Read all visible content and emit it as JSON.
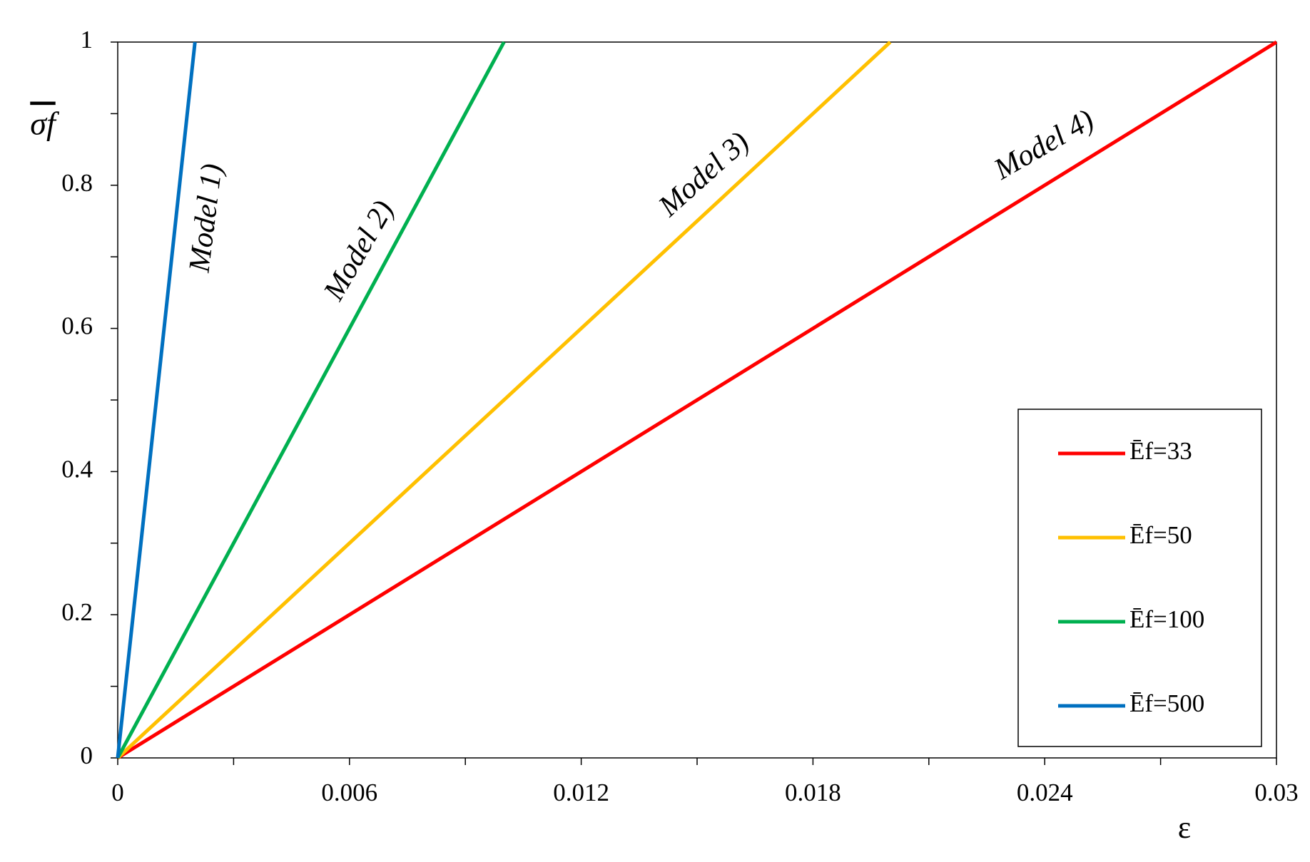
{
  "chart_data": {
    "type": "line",
    "xlabel": "ε",
    "ylabel": "σf",
    "xlim": [
      0,
      0.03
    ],
    "ylim": [
      0,
      1
    ],
    "xticks": [
      0,
      0.006,
      0.012,
      0.018,
      0.024,
      0.03
    ],
    "yticks": [
      0,
      0.2,
      0.4,
      0.6,
      0.8,
      1
    ],
    "xminorticks": [
      0.003,
      0.009,
      0.015,
      0.021,
      0.027
    ],
    "yminorticks": [
      0.1,
      0.3,
      0.5,
      0.7,
      0.9
    ],
    "series": [
      {
        "name": "Ēf=33",
        "color": "#ff0000",
        "x": [
          0,
          0.03
        ],
        "values": [
          0,
          1
        ]
      },
      {
        "name": "Ēf=50",
        "color": "#ffc000",
        "x": [
          0,
          0.02
        ],
        "values": [
          0,
          1
        ]
      },
      {
        "name": "Ēf=100",
        "color": "#00b050",
        "x": [
          0,
          0.01
        ],
        "values": [
          0,
          1
        ]
      },
      {
        "name": "Ēf=500",
        "color": "#0070c0",
        "x": [
          0,
          0.002
        ],
        "values": [
          0,
          1
        ]
      }
    ],
    "annotations": [
      "Model 1)",
      "Model 2)",
      "Model 3)",
      "Model 4)"
    ],
    "legend": "lower right"
  }
}
